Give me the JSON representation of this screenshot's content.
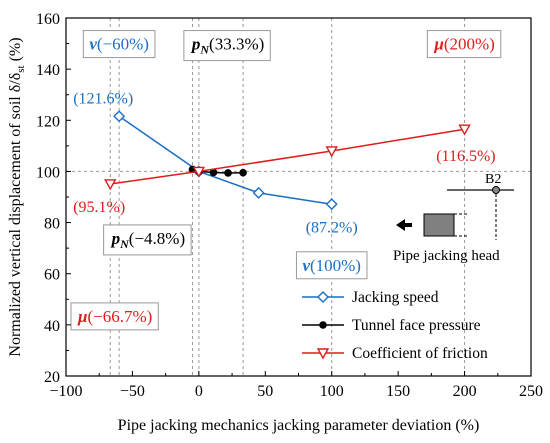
{
  "chart_data": {
    "type": "line",
    "title": "",
    "xlabel": "Pipe jacking mechanics jacking parameter deviation (%)",
    "ylabel": "Normalized vertical displacement of soil δ/δ",
    "ylabel_sub": "st",
    "ylabel_unit": " (%)",
    "xlim": [
      -100,
      250
    ],
    "ylim": [
      20,
      160
    ],
    "xticks": [
      -100,
      -50,
      0,
      50,
      100,
      150,
      200,
      250
    ],
    "yticks": [
      20,
      40,
      60,
      80,
      100,
      120,
      140,
      160
    ],
    "grid": false,
    "legend_position": "bottom-right",
    "series": [
      {
        "name": "Jacking speed",
        "color": "#1a6fc4",
        "marker": "diamond-open",
        "points": [
          [
            -60,
            121.6
          ],
          [
            0,
            100.0
          ],
          [
            45,
            91.6
          ],
          [
            100,
            87.2
          ]
        ]
      },
      {
        "name": "Tunnel face pressure",
        "color": "#000000",
        "marker": "circle-filled",
        "points": [
          [
            -4.8,
            100.8
          ],
          [
            0,
            100.0
          ],
          [
            11,
            99.6
          ],
          [
            22,
            99.4
          ],
          [
            33.3,
            99.5
          ]
        ]
      },
      {
        "name": "Coefficient of friction",
        "color": "#e01b1b",
        "marker": "triangle-down-open",
        "points": [
          [
            -66.7,
            95.1
          ],
          [
            0,
            100.0
          ],
          [
            100,
            108.0
          ],
          [
            200,
            116.5
          ]
        ]
      }
    ],
    "reference_lines": {
      "horizontal_y": 100,
      "vertical_x": [
        -66.7,
        -60,
        -4.8,
        0,
        33.3,
        100,
        200
      ]
    },
    "annotations": {
      "v_minus": {
        "symbol": "v",
        "value": "(−60%)",
        "color": "#1a6fc4",
        "x": -60,
        "y": 150
      },
      "pn_plus": {
        "symbol": "p",
        "sub": "N",
        "value": "(33.3%)",
        "color": "#000000",
        "x": 22,
        "y": 150
      },
      "mu_plus": {
        "symbol": "μ",
        "value": "(200%)",
        "color": "#e01b1b",
        "x": 200,
        "y": 150
      },
      "pn_minus": {
        "symbol": "p",
        "sub": "N",
        "value": "(−4.8%)",
        "color": "#000000",
        "x": -38,
        "y": 74
      },
      "v_plus": {
        "symbol": "v",
        "value": "(100%)",
        "color": "#1a6fc4",
        "x": 100,
        "y": 63.5
      },
      "mu_minus": {
        "symbol": "μ",
        "value": "(−66.7%)",
        "color": "#e01b1b",
        "x": -63,
        "y": 43.5
      }
    },
    "data_labels": [
      {
        "text": "(121.6%)",
        "color": "#1a6fc4",
        "x": -72,
        "y": 129
      },
      {
        "text": "(116.5%)",
        "color": "#e01b1b",
        "x": 201,
        "y": 106.5
      },
      {
        "text": "(95.1%)",
        "color": "#e01b1b",
        "x": -75,
        "y": 86.5
      },
      {
        "text": "(87.2%)",
        "color": "#1a6fc4",
        "x": 100,
        "y": 78.5
      }
    ],
    "inset": {
      "point_label": "B2",
      "caption": "Pipe jacking head"
    }
  }
}
